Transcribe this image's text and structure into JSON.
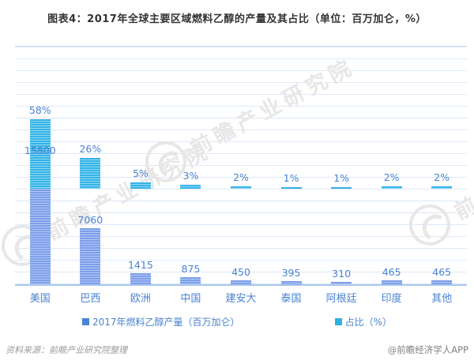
{
  "title": "图表4：2017年全球主要区域燃料乙醇的产量及其占比（单位：百万加仑，%）",
  "chart_data": {
    "type": "bar",
    "categories": [
      "美国",
      "巴西",
      "欧洲",
      "中国",
      "建安大",
      "泰国",
      "阿根廷",
      "印度",
      "其他"
    ],
    "series": [
      {
        "name": "2017年燃料乙醇产量（百万加仑）",
        "values": [
          15800,
          7060,
          1415,
          875,
          450,
          395,
          310,
          465,
          465
        ],
        "labels": [
          "15800",
          "7060",
          "1415",
          "875",
          "450",
          "395",
          "310",
          "465",
          "465"
        ],
        "axis": "left",
        "ylim": [
          0,
          30000
        ]
      },
      {
        "name": "占比（%）",
        "values": [
          58,
          26,
          5,
          3,
          2,
          1,
          1,
          2,
          2
        ],
        "labels": [
          "58%",
          "26%",
          "5%",
          "3%",
          "2%",
          "1%",
          "1%",
          "2%",
          "2%"
        ],
        "axis": "right",
        "ylim": [
          0,
          200
        ]
      }
    ],
    "title": "图表4：2017年全球主要区域燃料乙醇的产量及其占比（单位：百万加仑，%）",
    "xlabel": "",
    "ylabel": "",
    "grid": true,
    "legend_position": "bottom"
  },
  "legend": {
    "production_label": "2017年燃料乙醇产量（百万加仑）",
    "share_label": "占比（%）"
  },
  "footer": {
    "source": "资料来源：前瞻产业研究院整理",
    "credit": "@前瞻经济学人APP"
  },
  "watermark": {
    "text": "前瞻产业研究院"
  },
  "colors": {
    "title": "#333333",
    "accent-text": "#4a82d0",
    "share-bar": "#36b2e6",
    "share-bar-light": "#8fdaf6",
    "prod-bar": "#7d9ee9",
    "prod-bar-light": "#b3c8f5",
    "legend-prod": "#4a86d0",
    "legend-share": "#2fb0e5",
    "gridline": "#dce9f8",
    "axis": "#a9c6ec",
    "source": "#9a9a9a",
    "watermark": "#e7e7e7"
  }
}
